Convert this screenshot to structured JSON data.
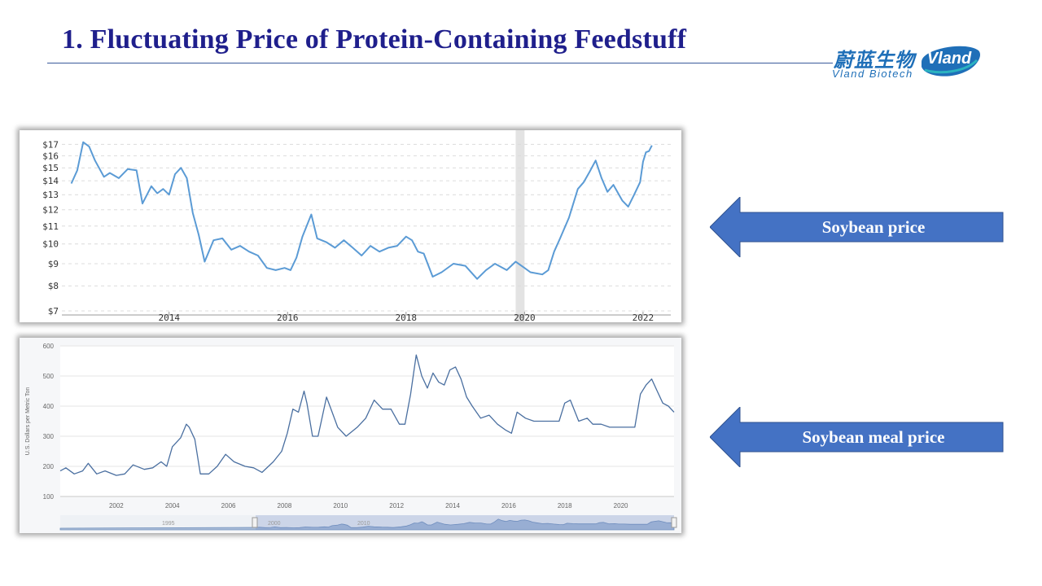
{
  "slide": {
    "title": "1. Fluctuating Price of Protein-Containing Feedstuff"
  },
  "logo": {
    "chinese": "蔚蓝生物",
    "english": "Vland  Biotech",
    "badge": "Vland"
  },
  "colors": {
    "title": "#1f1f8c",
    "arrow_fill": "#4472c4",
    "line1": "#5b9bd5",
    "line2": "#4a6fa0"
  },
  "arrows": [
    {
      "label": "Soybean price"
    },
    {
      "label": "Soybean meal price"
    }
  ],
  "chart_data": [
    {
      "type": "line",
      "y_scale": "log",
      "ylim": [
        7,
        17.4
      ],
      "xlim": [
        2012.3,
        2022.4
      ],
      "yticks": [
        7,
        8,
        9,
        10,
        11,
        12,
        13,
        14,
        15,
        16,
        17
      ],
      "ytick_labels": [
        "$7",
        "$8",
        "$9",
        "$10",
        "$11",
        "$12",
        "$13",
        "$14",
        "$15",
        "$16",
        "$17"
      ],
      "xticks": [
        2014,
        2016,
        2018,
        2020,
        2022
      ],
      "xtick_labels": [
        "2014",
        "2016",
        "2018",
        "2020",
        "2022"
      ],
      "shaded_region": [
        2019.85,
        2020.0
      ],
      "grid": "horizontal dashed",
      "x": [
        2012.35,
        2012.45,
        2012.55,
        2012.65,
        2012.75,
        2012.9,
        2013.0,
        2013.15,
        2013.3,
        2013.45,
        2013.55,
        2013.7,
        2013.8,
        2013.9,
        2014.0,
        2014.1,
        2014.2,
        2014.3,
        2014.4,
        2014.5,
        2014.6,
        2014.75,
        2014.9,
        2015.05,
        2015.2,
        2015.35,
        2015.5,
        2015.65,
        2015.8,
        2015.95,
        2016.05,
        2016.15,
        2016.25,
        2016.4,
        2016.5,
        2016.65,
        2016.8,
        2016.95,
        2017.1,
        2017.25,
        2017.4,
        2017.55,
        2017.7,
        2017.85,
        2018.0,
        2018.1,
        2018.2,
        2018.3,
        2018.45,
        2018.6,
        2018.8,
        2019.0,
        2019.2,
        2019.35,
        2019.5,
        2019.7,
        2019.85,
        2020.0,
        2020.1,
        2020.3,
        2020.4,
        2020.5,
        2020.6,
        2020.75,
        2020.9,
        2021.0,
        2021.1,
        2021.2,
        2021.3,
        2021.4,
        2021.5,
        2021.65,
        2021.75,
        2021.85,
        2021.95,
        2022.0,
        2022.05,
        2022.1,
        2022.15
      ],
      "values": [
        13.8,
        14.8,
        17.2,
        16.8,
        15.6,
        14.3,
        14.6,
        14.2,
        14.9,
        14.8,
        12.4,
        13.6,
        13.1,
        13.4,
        13.0,
        14.5,
        15.0,
        14.2,
        11.8,
        10.5,
        9.1,
        10.2,
        10.3,
        9.7,
        9.9,
        9.6,
        9.4,
        8.8,
        8.7,
        8.8,
        8.7,
        9.3,
        10.4,
        11.7,
        10.3,
        10.1,
        9.8,
        10.2,
        9.8,
        9.4,
        9.9,
        9.6,
        9.8,
        9.9,
        10.4,
        10.2,
        9.6,
        9.5,
        8.4,
        8.6,
        9.0,
        8.9,
        8.3,
        8.7,
        9.0,
        8.7,
        9.1,
        8.8,
        8.6,
        8.5,
        8.7,
        9.6,
        10.3,
        11.5,
        13.4,
        13.9,
        14.7,
        15.6,
        14.2,
        13.2,
        13.7,
        12.6,
        12.2,
        13.0,
        13.9,
        15.5,
        16.3,
        16.4,
        16.9
      ]
    },
    {
      "type": "line",
      "ylabel": "U.S. Dollars per Metric Ton",
      "ylim": [
        100,
        600
      ],
      "xlim": [
        2000.0,
        2021.9
      ],
      "yticks": [
        100,
        200,
        300,
        400,
        500,
        600
      ],
      "ytick_labels": [
        "100",
        "200",
        "300",
        "400",
        "500",
        "600"
      ],
      "xticks": [
        2002,
        2004,
        2006,
        2008,
        2010,
        2012,
        2014,
        2016,
        2018,
        2020
      ],
      "xtick_labels": [
        "2002",
        "2004",
        "2006",
        "2008",
        "2010",
        "2012",
        "2014",
        "2016",
        "2018",
        "2020"
      ],
      "navigator_labels": [
        "1995",
        "2000",
        "2010"
      ],
      "grid": "horizontal",
      "x": [
        2000.0,
        2000.2,
        2000.5,
        2000.8,
        2001.0,
        2001.3,
        2001.6,
        2002.0,
        2002.3,
        2002.6,
        2003.0,
        2003.3,
        2003.6,
        2003.8,
        2004.0,
        2004.3,
        2004.5,
        2004.6,
        2004.8,
        2005.0,
        2005.3,
        2005.6,
        2005.9,
        2006.2,
        2006.6,
        2006.9,
        2007.2,
        2007.6,
        2007.9,
        2008.1,
        2008.3,
        2008.5,
        2008.7,
        2008.8,
        2009.0,
        2009.2,
        2009.5,
        2009.7,
        2009.9,
        2010.2,
        2010.6,
        2010.9,
        2011.2,
        2011.5,
        2011.8,
        2012.1,
        2012.3,
        2012.5,
        2012.7,
        2012.9,
        2013.1,
        2013.3,
        2013.5,
        2013.7,
        2013.9,
        2014.1,
        2014.3,
        2014.5,
        2014.7,
        2015.0,
        2015.3,
        2015.6,
        2015.9,
        2016.1,
        2016.3,
        2016.6,
        2016.9,
        2017.2,
        2017.5,
        2017.8,
        2018.0,
        2018.2,
        2018.5,
        2018.8,
        2019.0,
        2019.3,
        2019.6,
        2019.9,
        2020.2,
        2020.5,
        2020.7,
        2020.9,
        2021.1,
        2021.3,
        2021.5,
        2021.7,
        2021.9
      ],
      "values": [
        185,
        195,
        175,
        185,
        210,
        175,
        185,
        170,
        175,
        205,
        190,
        195,
        215,
        200,
        265,
        295,
        340,
        330,
        290,
        175,
        175,
        200,
        240,
        215,
        200,
        195,
        180,
        215,
        250,
        310,
        390,
        380,
        450,
        410,
        300,
        300,
        430,
        380,
        330,
        300,
        330,
        360,
        420,
        390,
        390,
        340,
        340,
        440,
        570,
        500,
        460,
        510,
        480,
        470,
        520,
        530,
        490,
        430,
        400,
        360,
        370,
        340,
        320,
        310,
        380,
        360,
        350,
        350,
        350,
        350,
        410,
        420,
        350,
        360,
        340,
        340,
        330,
        330,
        330,
        330,
        440,
        470,
        490,
        450,
        410,
        400,
        380
      ]
    }
  ]
}
